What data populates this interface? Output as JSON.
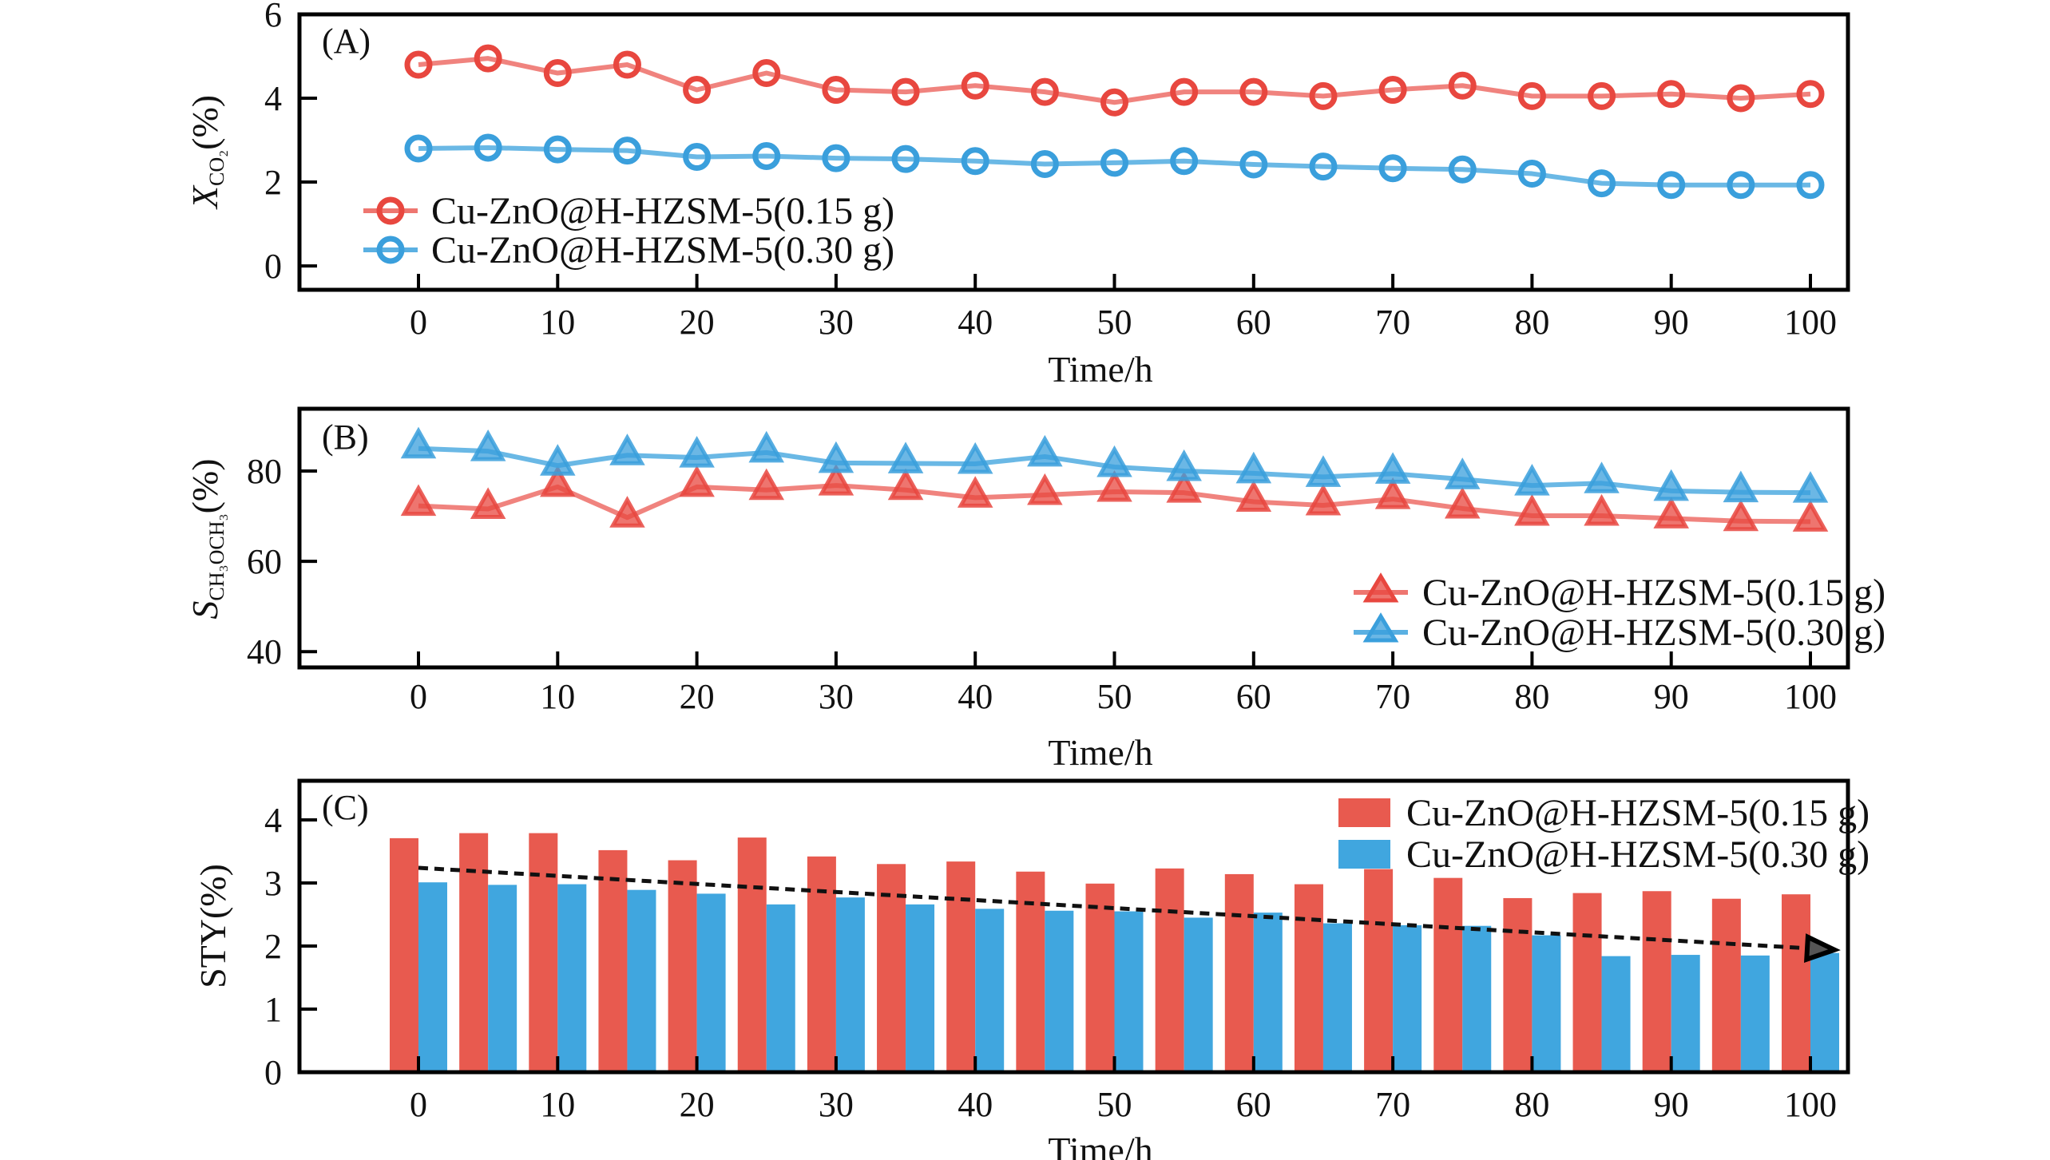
{
  "chart_data": [
    {
      "type": "line",
      "panel_label": "(A)",
      "title": "",
      "xlabel": "Time/h",
      "ylabel": "X_CO2(%)",
      "ylabel_main": "X",
      "ylabel_sub": "CO₂",
      "ylabel_suffix": "(%)",
      "xlim": [
        -8.5,
        103.5
      ],
      "ylim": [
        -0.57,
        6
      ],
      "xticks": [
        0,
        10,
        20,
        30,
        40,
        50,
        60,
        70,
        80,
        90,
        100
      ],
      "yticks": [
        0,
        2,
        4,
        6
      ],
      "ytick_marks": [
        0,
        2,
        4
      ],
      "x": [
        0,
        5,
        10,
        15,
        20,
        25,
        30,
        35,
        40,
        45,
        50,
        55,
        60,
        65,
        70,
        75,
        80,
        85,
        90,
        95,
        100
      ],
      "marker": "circle",
      "legend_position": "lower-left",
      "series": [
        {
          "name": "Cu-ZnO@H-HZSM-5(0.15 g)",
          "color": "#E8473F",
          "line_color": "#EE7670",
          "values": [
            4.8,
            4.95,
            4.6,
            4.8,
            4.2,
            4.6,
            4.2,
            4.15,
            4.3,
            4.15,
            3.9,
            4.15,
            4.15,
            4.05,
            4.2,
            4.3,
            4.05,
            4.05,
            4.1,
            4.0,
            4.1
          ]
        },
        {
          "name": "Cu-ZnO@H-HZSM-5(0.30 g)",
          "color": "#3A9FDC",
          "line_color": "#5AB0E2",
          "values": [
            2.8,
            2.82,
            2.78,
            2.75,
            2.6,
            2.62,
            2.57,
            2.55,
            2.5,
            2.43,
            2.46,
            2.5,
            2.42,
            2.37,
            2.33,
            2.3,
            2.2,
            1.97,
            1.93,
            1.93,
            1.93
          ]
        }
      ]
    },
    {
      "type": "line",
      "panel_label": "(B)",
      "title": "",
      "xlabel": "Time/h",
      "ylabel": "S_CH3OCH3(%)",
      "ylabel_main": "S",
      "ylabel_sub": "CH₃OCH₃",
      "ylabel_suffix": "(%)",
      "xlim": [
        -8.5,
        103.5
      ],
      "ylim": [
        36.5,
        93.8
      ],
      "xticks": [
        0,
        10,
        20,
        30,
        40,
        50,
        60,
        70,
        80,
        90,
        100
      ],
      "yticks": [
        40,
        60,
        80
      ],
      "ytick_marks": [
        40,
        60,
        80
      ],
      "x": [
        0,
        5,
        10,
        15,
        20,
        25,
        30,
        35,
        40,
        45,
        50,
        55,
        60,
        65,
        70,
        75,
        80,
        85,
        90,
        95,
        100
      ],
      "marker": "triangle",
      "legend_position": "lower-right",
      "series": [
        {
          "name": "Cu-ZnO@H-HZSM-5(0.15 g)",
          "color": "#E8473F",
          "line_color": "#EE7670",
          "values": [
            72.3,
            71.6,
            76.5,
            69.7,
            76.5,
            75.8,
            76.8,
            75.8,
            74.1,
            74.7,
            75.4,
            75.2,
            73.2,
            72.4,
            73.8,
            71.7,
            70.1,
            70.1,
            69.5,
            68.9,
            68.8
          ]
        },
        {
          "name": "Cu-ZnO@H-HZSM-5(0.30 g)",
          "color": "#3A9FDC",
          "line_color": "#5AB0E2",
          "values": [
            85.0,
            84.4,
            81.2,
            83.5,
            83.0,
            84.1,
            81.8,
            81.7,
            81.6,
            83.2,
            80.9,
            80.0,
            79.5,
            78.7,
            79.4,
            78.2,
            76.8,
            77.3,
            75.6,
            75.3,
            75.2
          ]
        }
      ]
    },
    {
      "type": "bar",
      "panel_label": "(C)",
      "title": "",
      "xlabel": "Time/h",
      "ylabel": "STY(%)",
      "xlim": [
        -8.5,
        103.5
      ],
      "ylim": [
        0,
        4.62
      ],
      "xticks": [
        0,
        10,
        20,
        30,
        40,
        50,
        60,
        70,
        80,
        90,
        100
      ],
      "yticks": [
        0,
        1,
        2,
        3,
        4
      ],
      "ytick_marks": [
        1,
        2,
        3,
        4
      ],
      "x": [
        0,
        5,
        10,
        15,
        20,
        25,
        30,
        35,
        40,
        45,
        50,
        55,
        60,
        65,
        70,
        75,
        80,
        85,
        90,
        95,
        100
      ],
      "legend_position": "top-right",
      "series": [
        {
          "name": "Cu-ZnO@H-HZSM-5(0.15 g)",
          "color": "#E85A4F",
          "values": [
            3.71,
            3.79,
            3.79,
            3.52,
            3.36,
            3.72,
            3.42,
            3.3,
            3.34,
            3.18,
            2.99,
            3.23,
            3.14,
            2.98,
            3.22,
            3.08,
            2.76,
            2.84,
            2.87,
            2.75,
            2.82
          ]
        },
        {
          "name": "Cu-ZnO@H-HZSM-5(0.30 g)",
          "color": "#40A6DF",
          "values": [
            3.01,
            2.97,
            2.98,
            2.89,
            2.83,
            2.66,
            2.77,
            2.66,
            2.59,
            2.56,
            2.55,
            2.45,
            2.53,
            2.36,
            2.33,
            2.32,
            2.17,
            1.84,
            1.86,
            1.85,
            1.89
          ]
        }
      ],
      "annotations": [
        {
          "type": "trend-arrow",
          "style": "dashed",
          "color": "#111111",
          "from": [
            0,
            3.24
          ],
          "to": [
            100,
            1.94
          ]
        }
      ]
    }
  ]
}
